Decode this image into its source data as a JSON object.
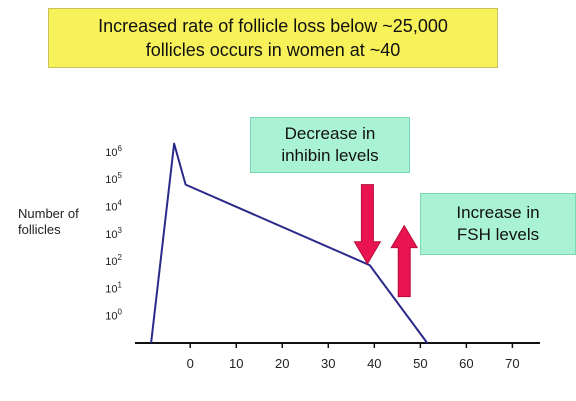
{
  "header": {
    "line1": "Increased rate of follicle loss below ~25,000",
    "line2": "follicles occurs in women at ~40"
  },
  "callouts": {
    "inhibin": {
      "line1": "Decrease in",
      "line2": "inhibin levels"
    },
    "fsh": {
      "line1": "Increase in",
      "line2": "FSH levels"
    }
  },
  "colors": {
    "header_bg": "#f7f25a",
    "callout_bg": "#a9f2d4",
    "line": "#2a2a8a",
    "arrow": "#e8134f"
  },
  "chart_data": {
    "type": "line",
    "ylabel_line1": "Number of",
    "ylabel_line2": "follicles",
    "xlabel": "",
    "x_ticks": [
      0,
      10,
      20,
      30,
      40,
      50,
      60,
      70
    ],
    "y_ticks": [
      {
        "base": "10",
        "exp": "0",
        "value": 0
      },
      {
        "base": "10",
        "exp": "1",
        "value": 1
      },
      {
        "base": "10",
        "exp": "2",
        "value": 2
      },
      {
        "base": "10",
        "exp": "3",
        "value": 3
      },
      {
        "base": "10",
        "exp": "4",
        "value": 4
      },
      {
        "base": "10",
        "exp": "5",
        "value": 5
      },
      {
        "base": "10",
        "exp": "6",
        "value": 6
      }
    ],
    "y_scale": "log",
    "xlim": [
      -12,
      76
    ],
    "ylim_log10": [
      -1,
      6.8
    ],
    "series": [
      {
        "x": [
          -8.5,
          -3.5,
          -1,
          39,
          51.5
        ],
        "log10_y": [
          -1,
          6.3,
          4.8,
          1.85,
          -1
        ]
      }
    ],
    "arrows": [
      {
        "label": "down",
        "x": 38.5,
        "log10_top": 4.8,
        "log10_bottom": 1.9
      },
      {
        "label": "up",
        "x": 46.5,
        "log10_top": 3.3,
        "log10_bottom": 0.7
      }
    ]
  }
}
